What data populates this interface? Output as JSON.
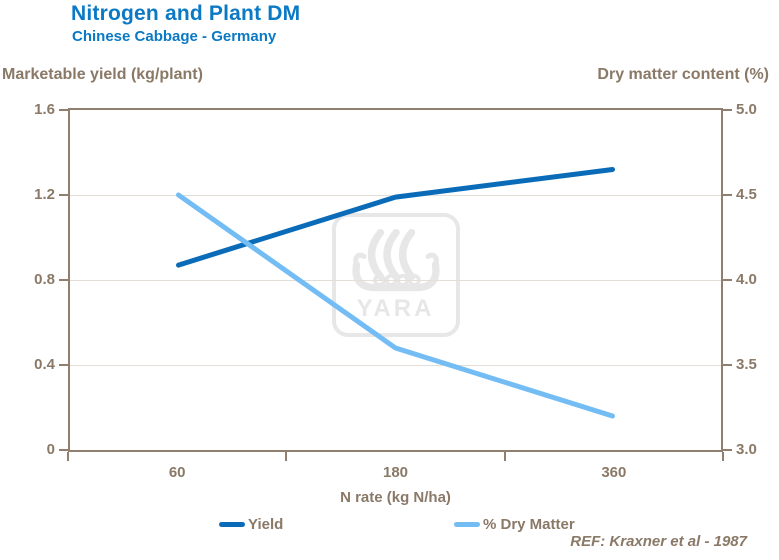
{
  "title": "Nitrogen and Plant DM",
  "subtitle": "Chinese Cabbage - Germany",
  "colors": {
    "title_blue": "#0b79c4",
    "yield_line": "#0a6cb8",
    "dry_matter_line": "#74bdf4",
    "axis_taupe_text": "#8a7967",
    "axis_line": "#907f6e",
    "gridline": "#e3ded7",
    "watermark_gray": "#e7e7e7"
  },
  "left_axis": {
    "title": "Marketable yield (kg/plant)",
    "ticks": [
      "1.6",
      "1.2",
      "0.8",
      "0.4",
      "0"
    ],
    "range": [
      0,
      1.6
    ]
  },
  "right_axis": {
    "title": "Dry matter content (%)",
    "ticks": [
      "5.0",
      "4.5",
      "4.0",
      "3.5",
      "3.0"
    ],
    "range": [
      3.0,
      5.0
    ]
  },
  "x_axis": {
    "title": "N rate (kg N/ha)",
    "ticks": [
      "60",
      "180",
      "360"
    ]
  },
  "legend": {
    "yield_label": "Yield",
    "dry_matter_label": "% Dry Matter"
  },
  "reference": "REF: Kraxner et al - 1987",
  "watermark": {
    "text": "YARA",
    "icon": "viking-ship-icon"
  },
  "chart_data": {
    "type": "line",
    "title": "Nitrogen and Plant DM",
    "subtitle": "Chinese Cabbage - Germany",
    "categories": [
      60,
      180,
      360
    ],
    "series": [
      {
        "name": "Yield",
        "axis": "left",
        "values": [
          0.87,
          1.19,
          1.32
        ],
        "color_key": "yield_line"
      },
      {
        "name": "% Dry Matter",
        "axis": "right",
        "values": [
          4.5,
          3.6,
          3.2
        ],
        "color_key": "dry_matter_line"
      }
    ],
    "xlabel": "N rate (kg N/ha)",
    "ylabel_left": "Marketable yield (kg/plant)",
    "ylabel_right": "Dry matter content (%)",
    "ylim_left": [
      0,
      1.6
    ],
    "ylim_right": [
      3.0,
      5.0
    ],
    "grid": true,
    "legend_position": "bottom",
    "reference": "REF: Kraxner et al - 1987"
  }
}
